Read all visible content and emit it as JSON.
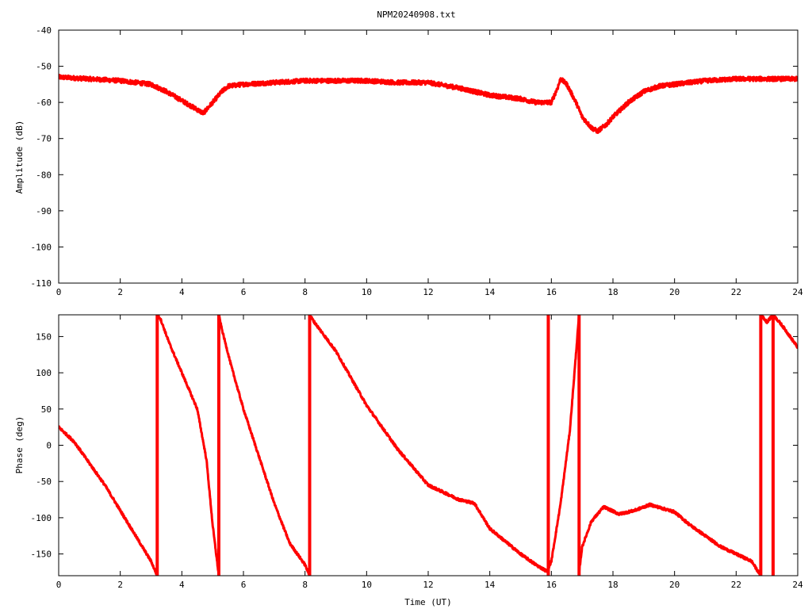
{
  "title": "NPM20240908.txt",
  "colors": {
    "series": "#ff0000",
    "axis": "#000000",
    "background": "#ffffff"
  },
  "chart_data": [
    {
      "type": "line",
      "name": "amplitude",
      "ylabel": "Amplitude (dB)",
      "xlabel": "",
      "xlim": [
        0,
        24
      ],
      "ylim": [
        -110,
        -40
      ],
      "xticks": [
        "0",
        "2",
        "4",
        "6",
        "8",
        "10",
        "12",
        "14",
        "16",
        "18",
        "20",
        "22",
        "24"
      ],
      "yticks": [
        "-40",
        "-50",
        "-60",
        "-70",
        "-80",
        "-90",
        "-100",
        "-110"
      ],
      "grid": false,
      "series": [
        {
          "x": [
            0,
            1,
            2,
            3,
            3.5,
            4,
            4.5,
            4.7,
            5,
            5.3,
            5.5,
            6,
            7,
            8,
            9,
            10,
            11,
            12,
            13,
            14,
            15,
            15.5,
            16,
            16.2,
            16.3,
            16.5,
            16.8,
            17,
            17.3,
            17.5,
            17.8,
            18,
            18.5,
            19,
            19.5,
            20,
            21,
            22,
            23,
            24
          ],
          "y": [
            -53,
            -53.5,
            -54,
            -55,
            -57,
            -59.5,
            -62,
            -63,
            -60,
            -57,
            -55.5,
            -55,
            -54.5,
            -54,
            -54,
            -54,
            -54.5,
            -54.5,
            -56,
            -58,
            -59,
            -60,
            -60,
            -56,
            -53.5,
            -55,
            -60,
            -64,
            -67,
            -68,
            -66,
            -64,
            -60,
            -57,
            -55.5,
            -55,
            -54,
            -53.5,
            -53.5,
            -53.5
          ]
        }
      ]
    },
    {
      "type": "line",
      "name": "phase",
      "ylabel": "Phase (deg)",
      "xlabel": "Time (UT)",
      "xlim": [
        0,
        24
      ],
      "ylim": [
        -180,
        180
      ],
      "xticks": [
        "0",
        "2",
        "4",
        "6",
        "8",
        "10",
        "12",
        "14",
        "16",
        "18",
        "20",
        "22",
        "24"
      ],
      "yticks": [
        "150",
        "100",
        "50",
        "0",
        "-50",
        "-100",
        "-150"
      ],
      "grid": false,
      "series": [
        {
          "segments": [
            {
              "x": [
                0,
                0.5,
                1,
                1.5,
                2,
                2.5,
                3,
                3.2
              ],
              "y": [
                25,
                5,
                -25,
                -55,
                -90,
                -125,
                -160,
                -180
              ]
            },
            {
              "x": [
                3.2,
                3.3,
                3.6,
                4,
                4.5,
                4.8,
                5.0,
                5.2
              ],
              "y": [
                180,
                175,
                140,
                100,
                50,
                -20,
                -110,
                -180
              ]
            },
            {
              "x": [
                5.2,
                5.3,
                5.6,
                6,
                6.5,
                7,
                7.5,
                8,
                8.15
              ],
              "y": [
                180,
                160,
                110,
                50,
                -15,
                -80,
                -135,
                -165,
                -180
              ]
            },
            {
              "x": [
                8.15,
                8.3,
                9,
                10,
                11,
                12,
                13,
                13.5,
                14,
                15,
                15.5,
                15.9
              ],
              "y": [
                180,
                170,
                130,
                55,
                -5,
                -55,
                -75,
                -80,
                -115,
                -150,
                -165,
                -175
              ]
            },
            {
              "x": [
                15.9,
                16,
                16.3,
                16.6,
                16.9
              ],
              "y": [
                -170,
                -160,
                -80,
                20,
                180
              ]
            },
            {
              "x": [
                16.9,
                17,
                17.3,
                17.7,
                18.2,
                18.7,
                19.2,
                20,
                20.5,
                21,
                21.5,
                22,
                22.5,
                22.8
              ],
              "y": [
                -175,
                -140,
                -105,
                -85,
                -95,
                -90,
                -82,
                -92,
                -110,
                -125,
                -140,
                -150,
                -160,
                -180
              ]
            },
            {
              "x": [
                22.8,
                23.0,
                23.2
              ],
              "y": [
                180,
                170,
                180
              ]
            },
            {
              "x": [
                23.2,
                23.5,
                24
              ],
              "y": [
                180,
                165,
                135
              ]
            }
          ],
          "wraps": [
            3.2,
            5.2,
            8.15,
            15.9,
            16.9,
            22.8,
            23.2
          ]
        }
      ]
    }
  ]
}
